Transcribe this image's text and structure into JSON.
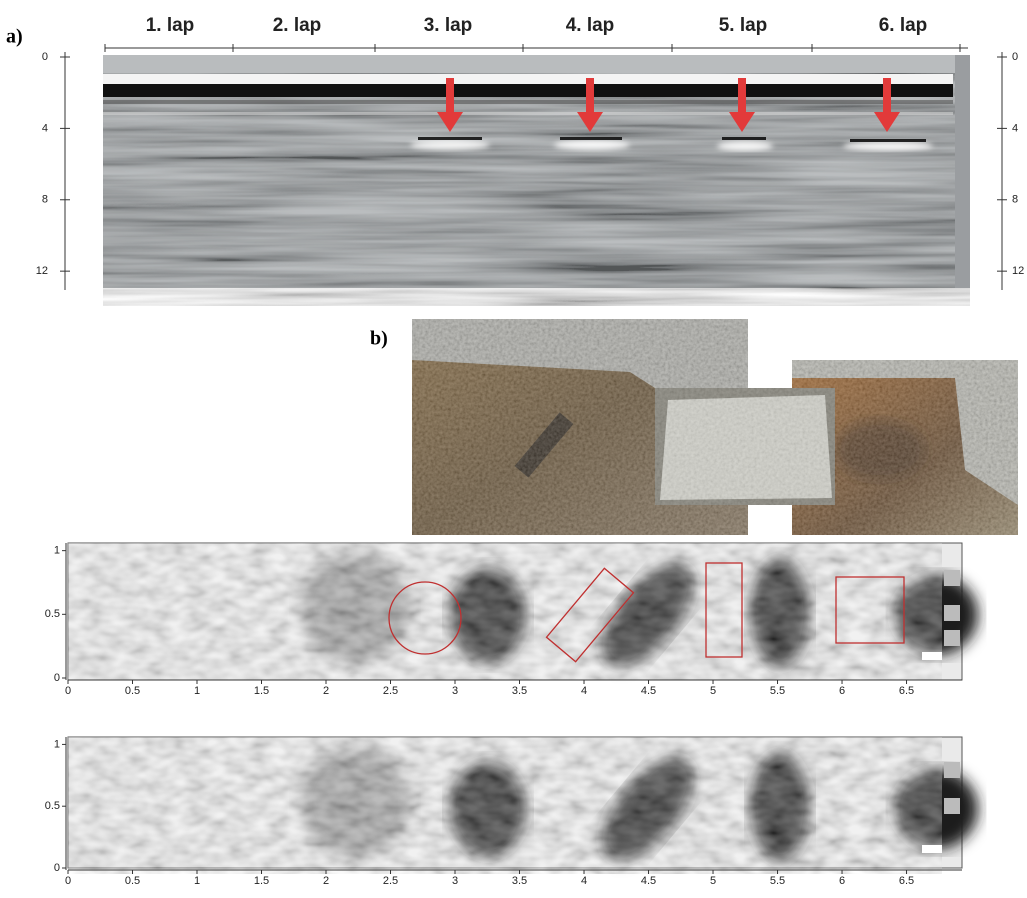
{
  "panel_a": {
    "label": "a)",
    "laps": [
      "1. lap",
      "2. lap",
      "3. lap",
      "4. lap",
      "5. lap",
      "6. lap"
    ],
    "depth_axis": {
      "ylim": [
        0,
        13
      ],
      "yticks": [
        0,
        4,
        8,
        12
      ]
    }
  },
  "panel_b": {
    "label": "b)"
  },
  "maps": [
    {
      "xlim": [
        0,
        6.93
      ],
      "ylim": [
        0,
        1.06
      ],
      "xticks": [
        0,
        0.5,
        1,
        1.5,
        2,
        2.5,
        3,
        3.5,
        4,
        4.5,
        5,
        5.5,
        6,
        6.5
      ],
      "yticks": [
        0,
        0.5,
        1
      ]
    },
    {
      "xlim": [
        0,
        6.93
      ],
      "ylim": [
        0,
        1.06
      ],
      "xticks": [
        0,
        0.5,
        1,
        1.5,
        2,
        2.5,
        3,
        3.5,
        4,
        4.5,
        5,
        5.5,
        6,
        6.5
      ],
      "yticks": [
        0,
        0.5,
        1
      ]
    }
  ]
}
